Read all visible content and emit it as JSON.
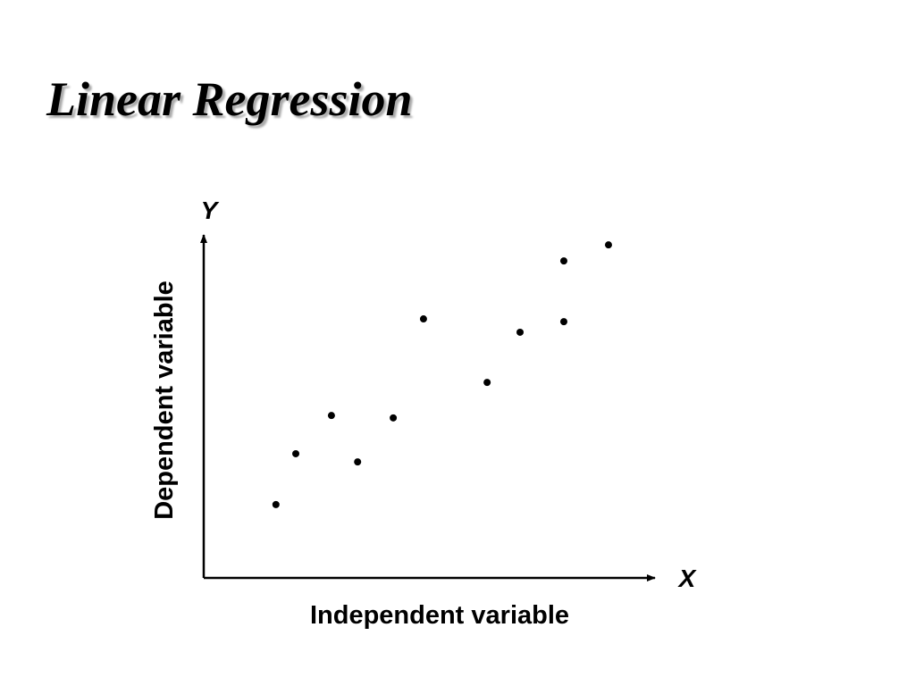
{
  "chart_data": {
    "type": "scatter",
    "title": "Linear Regression",
    "x_axis_name": "X",
    "y_axis_name": "Y",
    "xlabel": "Independent variable",
    "ylabel": "Dependent variable",
    "x": [
      16.0,
      20.4,
      28.3,
      34.1,
      42.0,
      48.7,
      62.8,
      70.1,
      79.8,
      79.8,
      89.7
    ],
    "values": [
      21.5,
      36.4,
      47.6,
      34.0,
      46.9,
      75.9,
      57.3,
      72.0,
      75.1,
      92.9,
      97.6
    ],
    "color": "#000000",
    "xlim": [
      0,
      100
    ],
    "ylim": [
      0,
      100
    ]
  }
}
